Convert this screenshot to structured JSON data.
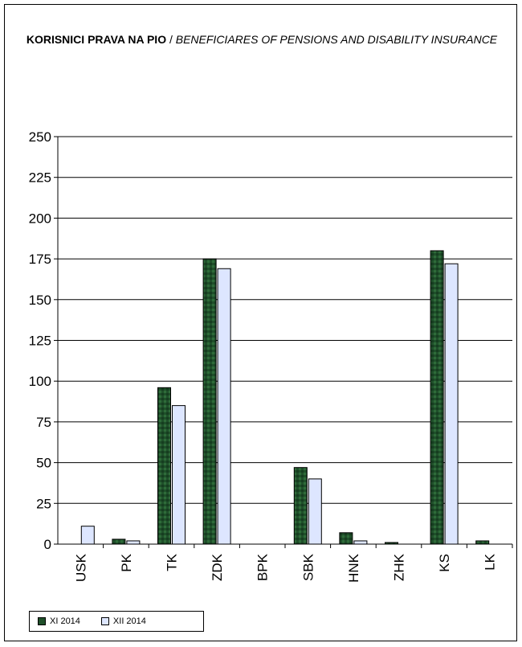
{
  "chart_data": {
    "type": "bar",
    "title_bold": "KORISNICI PRAVA NA PIO",
    "title_separator": " / ",
    "title_italic": "BENEFICIARES OF PENSIONS AND DISABILITY INSURANCE",
    "categories": [
      "USK",
      "PK",
      "TK",
      "ZDK",
      "BPK",
      "SBK",
      "HNK",
      "ZHK",
      "KS",
      "LK"
    ],
    "series": [
      {
        "name": "XI 2014",
        "color": "#1f4f2a",
        "values": [
          0,
          3,
          96,
          175,
          0,
          47,
          7,
          1,
          180,
          2
        ]
      },
      {
        "name": "XII 2014",
        "color": "#dde6ff",
        "values": [
          11,
          2,
          85,
          169,
          0,
          40,
          2,
          0,
          172,
          0
        ]
      }
    ],
    "ylim": [
      0,
      250
    ],
    "yticks": [
      0,
      25,
      50,
      75,
      100,
      125,
      150,
      175,
      200,
      225,
      250
    ],
    "grid": true,
    "legend_position": "bottom-left"
  }
}
